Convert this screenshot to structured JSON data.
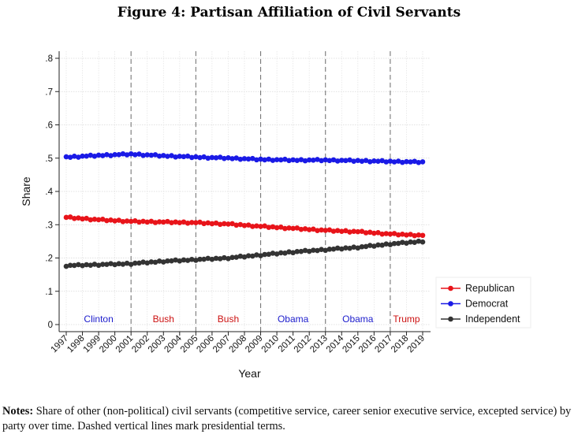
{
  "figure": {
    "title": "Figure 4: Partisan Affiliation of Civil Servants",
    "notes_label": "Notes:",
    "notes_text": "Share of other (non-political) civil servants (competitive service, career senior executive service, excepted service) by party over time. Dashed vertical lines mark presidential terms."
  },
  "chart_data": {
    "type": "line",
    "xlabel": "Year",
    "ylabel": "Share",
    "xlim": [
      1997,
      2019
    ],
    "ylim": [
      0,
      0.8
    ],
    "x_ticks": [
      "1997",
      "1998",
      "1999",
      "2000",
      "2001",
      "2002",
      "2003",
      "2004",
      "2005",
      "2006",
      "2007",
      "2008",
      "2009",
      "2010",
      "2011",
      "2012",
      "2013",
      "2014",
      "2015",
      "2016",
      "2017",
      "2018",
      "2019"
    ],
    "y_ticks": [
      {
        "value": 0,
        "label": "0"
      },
      {
        "value": 0.1,
        "label": ".1"
      },
      {
        "value": 0.2,
        "label": ".2"
      },
      {
        "value": 0.3,
        "label": ".3"
      },
      {
        "value": 0.4,
        "label": ".4"
      },
      {
        "value": 0.5,
        "label": ".5"
      },
      {
        "value": 0.6,
        "label": ".6"
      },
      {
        "value": 0.7,
        "label": ".7"
      },
      {
        "value": 0.8,
        "label": ".8"
      }
    ],
    "grid": true,
    "legend_position": "bottom-right",
    "term_lines": [
      2001,
      2005,
      2009,
      2013,
      2017
    ],
    "presidential_terms": [
      {
        "label": "Clinton",
        "start": 1997,
        "end": 2001,
        "color": "#1c1ccc"
      },
      {
        "label": "Bush",
        "start": 2001,
        "end": 2005,
        "color": "#cc1111"
      },
      {
        "label": "Bush",
        "start": 2005,
        "end": 2009,
        "color": "#cc1111"
      },
      {
        "label": "Obama",
        "start": 2009,
        "end": 2013,
        "color": "#1c1ccc"
      },
      {
        "label": "Obama",
        "start": 2013,
        "end": 2017,
        "color": "#1c1ccc"
      },
      {
        "label": "Trump",
        "start": 2017,
        "end": 2019,
        "color": "#cc1111"
      }
    ],
    "points_per_year": 4,
    "series": [
      {
        "name": "Republican",
        "color": "#e8141a",
        "anchors": {
          "x": [
            1997,
            1999,
            2001,
            2003,
            2005,
            2007,
            2009,
            2011,
            2013,
            2015,
            2017,
            2019
          ],
          "y": [
            0.322,
            0.315,
            0.31,
            0.308,
            0.306,
            0.302,
            0.295,
            0.289,
            0.283,
            0.279,
            0.272,
            0.268
          ]
        }
      },
      {
        "name": "Democrat",
        "color": "#1a1ae6",
        "anchors": {
          "x": [
            1997,
            1999,
            2001,
            2003,
            2005,
            2007,
            2009,
            2011,
            2013,
            2015,
            2017,
            2019
          ],
          "y": [
            0.503,
            0.508,
            0.512,
            0.507,
            0.503,
            0.5,
            0.496,
            0.494,
            0.494,
            0.492,
            0.49,
            0.488
          ]
        }
      },
      {
        "name": "Independent",
        "color": "#333333",
        "anchors": {
          "x": [
            1997,
            1999,
            2001,
            2003,
            2005,
            2007,
            2009,
            2011,
            2013,
            2015,
            2017,
            2019
          ],
          "y": [
            0.177,
            0.18,
            0.183,
            0.19,
            0.195,
            0.2,
            0.209,
            0.218,
            0.225,
            0.232,
            0.242,
            0.25
          ]
        }
      }
    ]
  }
}
